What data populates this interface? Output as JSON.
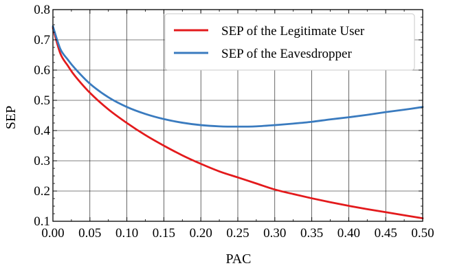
{
  "chart_data": {
    "type": "line",
    "xlabel": "PAC",
    "ylabel": "SEP",
    "xlim": [
      0,
      0.5
    ],
    "ylim": [
      0.1,
      0.8
    ],
    "xticks": [
      "0.00",
      "0.05",
      "0.10",
      "0.15",
      "0.20",
      "0.25",
      "0.30",
      "0.35",
      "0.40",
      "0.45",
      "0.50"
    ],
    "yticks": [
      "0.1",
      "0.2",
      "0.3",
      "0.4",
      "0.5",
      "0.6",
      "0.7",
      "0.8"
    ],
    "grid": true,
    "legend_position": "top-right",
    "series": [
      {
        "name": "SEP of the Legitimate User",
        "color": "#e31a1c",
        "x": [
          0.0,
          0.01,
          0.02,
          0.03,
          0.05,
          0.075,
          0.1,
          0.125,
          0.15,
          0.175,
          0.2,
          0.225,
          0.25,
          0.275,
          0.3,
          0.325,
          0.35,
          0.375,
          0.4,
          0.425,
          0.45,
          0.475,
          0.5
        ],
        "values": [
          0.74,
          0.655,
          0.615,
          0.58,
          0.525,
          0.47,
          0.425,
          0.385,
          0.35,
          0.318,
          0.29,
          0.265,
          0.245,
          0.225,
          0.205,
          0.19,
          0.176,
          0.163,
          0.151,
          0.14,
          0.13,
          0.12,
          0.11
        ]
      },
      {
        "name": "SEP of the Eavesdropper",
        "color": "#3a7bbf",
        "x": [
          0.0,
          0.01,
          0.02,
          0.03,
          0.05,
          0.075,
          0.1,
          0.125,
          0.15,
          0.175,
          0.2,
          0.225,
          0.25,
          0.275,
          0.3,
          0.325,
          0.35,
          0.375,
          0.4,
          0.425,
          0.45,
          0.475,
          0.5
        ],
        "values": [
          0.745,
          0.67,
          0.635,
          0.605,
          0.555,
          0.51,
          0.478,
          0.455,
          0.438,
          0.426,
          0.418,
          0.414,
          0.413,
          0.414,
          0.418,
          0.423,
          0.429,
          0.437,
          0.444,
          0.452,
          0.461,
          0.469,
          0.478
        ]
      }
    ]
  }
}
